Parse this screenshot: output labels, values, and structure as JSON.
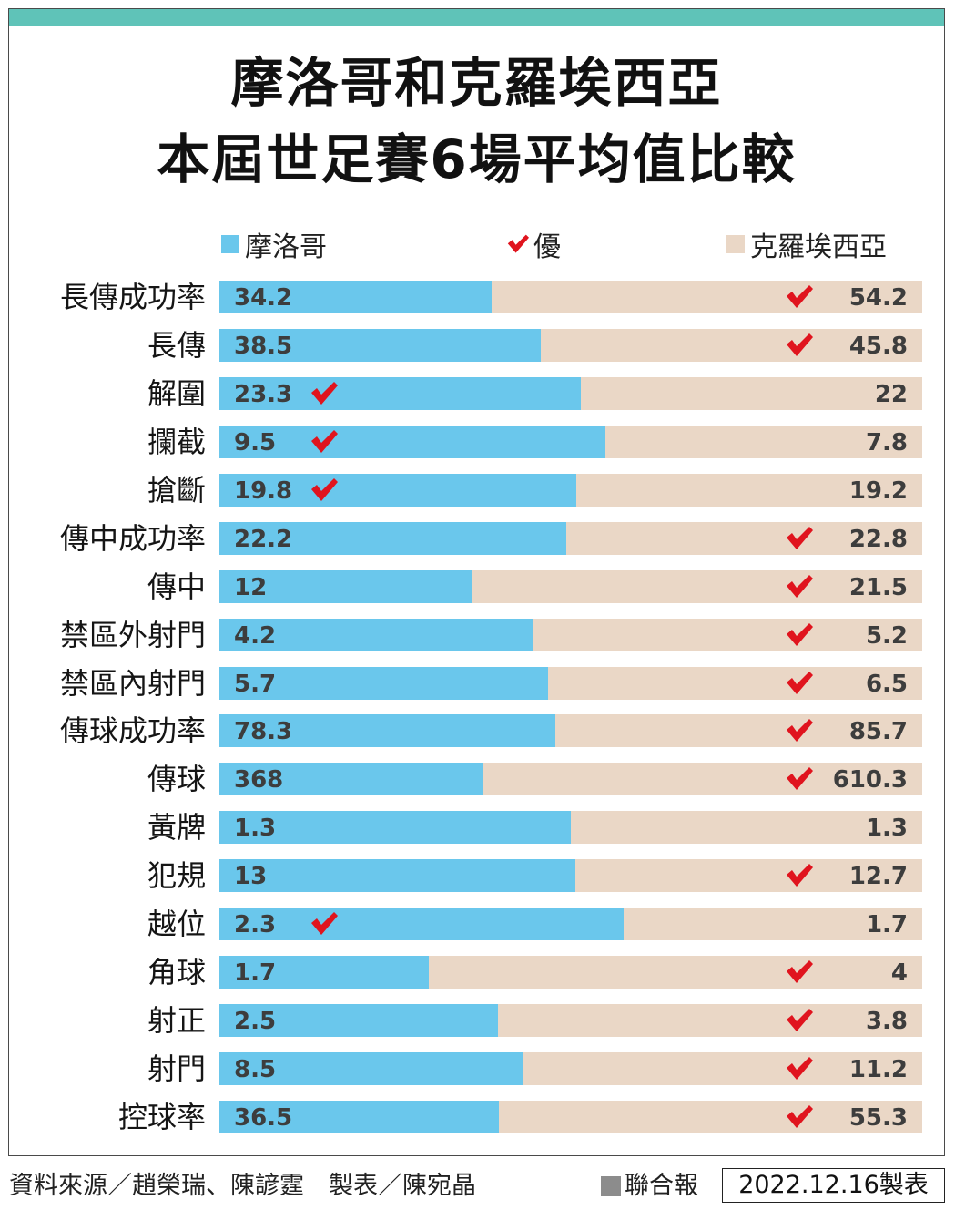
{
  "title_line1": "摩洛哥和克羅埃西亞",
  "title_line2": "本屆世足賽6場平均值比較",
  "legend": {
    "left_team": "摩洛哥",
    "better": "優",
    "right_team": "克羅埃西亞"
  },
  "colors": {
    "left_team": "#6ac7ec",
    "right_team": "#ead7c6",
    "check": "#e0141e",
    "top_bar": "#5fc3b8"
  },
  "chart_data": {
    "type": "bar",
    "orientation": "horizontal-split",
    "series": [
      {
        "name": "摩洛哥",
        "values": [
          34.2,
          38.5,
          23.3,
          9.5,
          19.8,
          22.2,
          12,
          4.2,
          5.7,
          78.3,
          368,
          1.3,
          13,
          2.3,
          1.7,
          2.5,
          8.5,
          36.5
        ]
      },
      {
        "name": "克羅埃西亞",
        "values": [
          54.2,
          45.8,
          22,
          7.8,
          19.2,
          22.8,
          21.5,
          5.2,
          6.5,
          85.7,
          610.3,
          1.3,
          12.7,
          1.7,
          4,
          3.8,
          11.2,
          55.3
        ]
      }
    ],
    "rows": [
      {
        "label": "長傳成功率",
        "left": "34.2",
        "right": "54.2",
        "left_value": 34.2,
        "right_value": 54.2,
        "better": "right"
      },
      {
        "label": "長傳",
        "left": "38.5",
        "right": "45.8",
        "left_value": 38.5,
        "right_value": 45.8,
        "better": "right"
      },
      {
        "label": "解圍",
        "left": "23.3",
        "right": "22",
        "left_value": 23.3,
        "right_value": 22,
        "better": "left"
      },
      {
        "label": "攔截",
        "left": "9.5",
        "right": "7.8",
        "left_value": 9.5,
        "right_value": 7.8,
        "better": "left"
      },
      {
        "label": "搶斷",
        "left": "19.8",
        "right": "19.2",
        "left_value": 19.8,
        "right_value": 19.2,
        "better": "left"
      },
      {
        "label": "傳中成功率",
        "left": "22.2",
        "right": "22.8",
        "left_value": 22.2,
        "right_value": 22.8,
        "better": "right"
      },
      {
        "label": "傳中",
        "left": "12",
        "right": "21.5",
        "left_value": 12,
        "right_value": 21.5,
        "better": "right"
      },
      {
        "label": "禁區外射門",
        "left": "4.2",
        "right": "5.2",
        "left_value": 4.2,
        "right_value": 5.2,
        "better": "right"
      },
      {
        "label": "禁區內射門",
        "left": "5.7",
        "right": "6.5",
        "left_value": 5.7,
        "right_value": 6.5,
        "better": "right"
      },
      {
        "label": "傳球成功率",
        "left": "78.3",
        "right": "85.7",
        "left_value": 78.3,
        "right_value": 85.7,
        "better": "right"
      },
      {
        "label": "傳球",
        "left": "368",
        "right": "610.3",
        "left_value": 368,
        "right_value": 610.3,
        "better": "right"
      },
      {
        "label": "黃牌",
        "left": "1.3",
        "right": "1.3",
        "left_value": 1.3,
        "right_value": 1.3,
        "better": "none"
      },
      {
        "label": "犯規",
        "left": "13",
        "right": "12.7",
        "left_value": 13,
        "right_value": 12.7,
        "better": "right"
      },
      {
        "label": "越位",
        "left": "2.3",
        "right": "1.7",
        "left_value": 2.3,
        "right_value": 1.7,
        "better": "left"
      },
      {
        "label": "角球",
        "left": "1.7",
        "right": "4",
        "left_value": 1.7,
        "right_value": 4,
        "better": "right"
      },
      {
        "label": "射正",
        "left": "2.5",
        "right": "3.8",
        "left_value": 2.5,
        "right_value": 3.8,
        "better": "right"
      },
      {
        "label": "射門",
        "left": "8.5",
        "right": "11.2",
        "left_value": 8.5,
        "right_value": 11.2,
        "better": "right"
      },
      {
        "label": "控球率",
        "left": "36.5",
        "right": "55.3",
        "left_value": 36.5,
        "right_value": 55.3,
        "better": "right"
      }
    ]
  },
  "footer": {
    "source": "資料來源／趙榮瑞、陳諺霆　製表／陳宛晶",
    "publisher": "聯合報",
    "date": "2022.12.16製表"
  }
}
